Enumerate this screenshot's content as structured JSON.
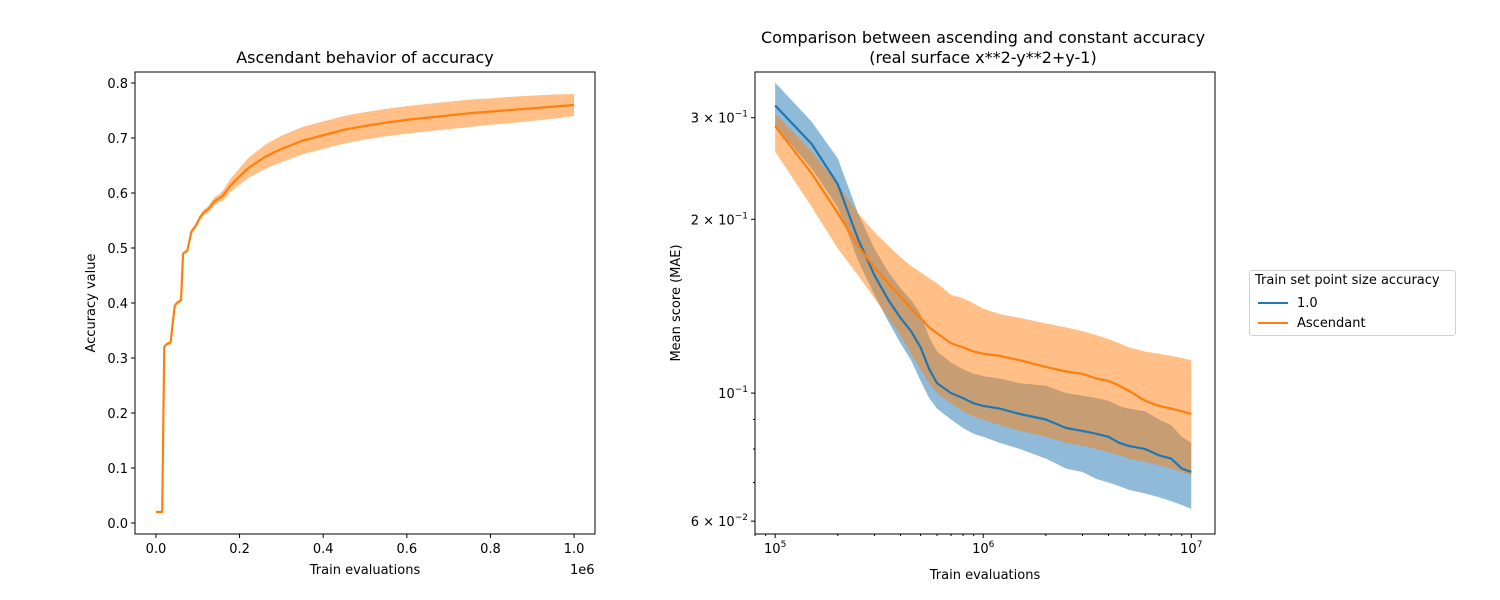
{
  "chart_data": [
    {
      "type": "line",
      "title": "Ascendant behavior of accuracy",
      "xlabel": "Train evaluations",
      "ylabel": "Accuracy value",
      "x_offset_label": "1e6",
      "xlim": [
        -0.05,
        1.05
      ],
      "ylim": [
        -0.02,
        0.82
      ],
      "x_ticks": [
        0.0,
        0.2,
        0.4,
        0.6,
        0.8,
        1.0
      ],
      "x_tick_labels": [
        "0.0",
        "0.2",
        "0.4",
        "0.6",
        "0.8",
        "1.0"
      ],
      "y_ticks": [
        0.0,
        0.1,
        0.2,
        0.3,
        0.4,
        0.5,
        0.6,
        0.7,
        0.8
      ],
      "y_tick_labels": [
        "0.0",
        "0.1",
        "0.2",
        "0.3",
        "0.4",
        "0.5",
        "0.6",
        "0.7",
        "0.8"
      ],
      "grid": false,
      "series": [
        {
          "color": "#ff7f0e",
          "band_color": "#ffbb88",
          "x": [
            0.0,
            0.015,
            0.02,
            0.025,
            0.035,
            0.045,
            0.05,
            0.06,
            0.065,
            0.075,
            0.085,
            0.095,
            0.105,
            0.115,
            0.125,
            0.14,
            0.15,
            0.16,
            0.17,
            0.18,
            0.2,
            0.22,
            0.24,
            0.26,
            0.28,
            0.3,
            0.35,
            0.4,
            0.45,
            0.5,
            0.55,
            0.6,
            0.65,
            0.7,
            0.75,
            0.8,
            0.85,
            0.9,
            0.95,
            1.0
          ],
          "y": [
            0.02,
            0.02,
            0.32,
            0.325,
            0.328,
            0.395,
            0.4,
            0.405,
            0.49,
            0.495,
            0.53,
            0.54,
            0.555,
            0.565,
            0.57,
            0.585,
            0.59,
            0.595,
            0.605,
            0.615,
            0.63,
            0.645,
            0.655,
            0.665,
            0.673,
            0.68,
            0.695,
            0.705,
            0.715,
            0.722,
            0.728,
            0.733,
            0.737,
            0.741,
            0.745,
            0.748,
            0.751,
            0.754,
            0.757,
            0.76
          ],
          "lower": [
            0.018,
            0.018,
            0.318,
            0.322,
            0.325,
            0.392,
            0.397,
            0.402,
            0.487,
            0.492,
            0.526,
            0.536,
            0.55,
            0.56,
            0.564,
            0.578,
            0.583,
            0.586,
            0.594,
            0.603,
            0.615,
            0.627,
            0.635,
            0.643,
            0.65,
            0.656,
            0.67,
            0.68,
            0.69,
            0.697,
            0.703,
            0.708,
            0.712,
            0.716,
            0.72,
            0.724,
            0.727,
            0.731,
            0.735,
            0.74
          ],
          "upper": [
            0.022,
            0.022,
            0.322,
            0.328,
            0.331,
            0.398,
            0.403,
            0.408,
            0.493,
            0.498,
            0.534,
            0.544,
            0.56,
            0.57,
            0.576,
            0.592,
            0.597,
            0.604,
            0.616,
            0.627,
            0.645,
            0.663,
            0.675,
            0.687,
            0.696,
            0.704,
            0.72,
            0.73,
            0.74,
            0.747,
            0.753,
            0.758,
            0.762,
            0.766,
            0.77,
            0.772,
            0.775,
            0.777,
            0.779,
            0.78
          ]
        }
      ]
    },
    {
      "type": "line",
      "title": "Comparison between ascending and constant accuracy",
      "subtitle": "(real surface x**2-y**2+y-1)",
      "xlabel": "Train evaluations",
      "ylabel": "Mean score (MAE)",
      "x_scale": "log",
      "y_scale": "log",
      "xlim": [
        80000,
        13000000
      ],
      "ylim": [
        0.057,
        0.36
      ],
      "x_ticks": [
        100000,
        1000000,
        10000000
      ],
      "x_tick_labels": [
        "10^5",
        "10^6",
        "10^7"
      ],
      "y_ticks": [
        0.06,
        0.1,
        0.2,
        0.3
      ],
      "y_tick_labels": [
        "6 × 10^-2",
        "10^-1",
        "2 × 10^-1",
        "3 × 10^-1"
      ],
      "grid": false,
      "legend": {
        "title": "Train set point size accuracy",
        "placement": "outside-right"
      },
      "series": [
        {
          "name": "1.0",
          "color": "#1f77b4",
          "band_color": "#8fbbd9",
          "x": [
            100000,
            150000,
            200000,
            250000,
            300000,
            350000,
            400000,
            450000,
            500000,
            550000,
            600000,
            700000,
            800000,
            900000,
            1000000,
            1200000,
            1500000,
            2000000,
            2500000,
            3000000,
            3500000,
            4000000,
            4500000,
            5000000,
            6000000,
            7000000,
            8000000,
            9000000,
            10000000
          ],
          "y": [
            0.315,
            0.27,
            0.23,
            0.185,
            0.16,
            0.145,
            0.135,
            0.128,
            0.12,
            0.11,
            0.104,
            0.1,
            0.098,
            0.096,
            0.095,
            0.094,
            0.092,
            0.09,
            0.087,
            0.086,
            0.085,
            0.084,
            0.082,
            0.081,
            0.08,
            0.078,
            0.077,
            0.074,
            0.073
          ],
          "lower": [
            0.29,
            0.245,
            0.21,
            0.17,
            0.148,
            0.133,
            0.122,
            0.114,
            0.105,
            0.098,
            0.094,
            0.09,
            0.087,
            0.085,
            0.084,
            0.082,
            0.08,
            0.077,
            0.074,
            0.073,
            0.071,
            0.07,
            0.069,
            0.068,
            0.067,
            0.066,
            0.065,
            0.064,
            0.063
          ],
          "upper": [
            0.345,
            0.295,
            0.255,
            0.205,
            0.178,
            0.162,
            0.152,
            0.145,
            0.137,
            0.125,
            0.118,
            0.113,
            0.11,
            0.108,
            0.107,
            0.106,
            0.104,
            0.103,
            0.1,
            0.099,
            0.098,
            0.097,
            0.095,
            0.094,
            0.093,
            0.09,
            0.088,
            0.084,
            0.082
          ]
        },
        {
          "name": "Ascendant",
          "color": "#ff7f0e",
          "band_color": "#ffbb88",
          "x": [
            100000,
            150000,
            200000,
            250000,
            300000,
            350000,
            400000,
            450000,
            500000,
            550000,
            600000,
            700000,
            800000,
            900000,
            1000000,
            1200000,
            1500000,
            2000000,
            2500000,
            3000000,
            3500000,
            4000000,
            4500000,
            5000000,
            6000000,
            7000000,
            8000000,
            9000000,
            10000000
          ],
          "y": [
            0.29,
            0.24,
            0.205,
            0.18,
            0.165,
            0.155,
            0.147,
            0.14,
            0.135,
            0.13,
            0.127,
            0.122,
            0.12,
            0.118,
            0.117,
            0.116,
            0.114,
            0.111,
            0.109,
            0.108,
            0.106,
            0.105,
            0.103,
            0.101,
            0.097,
            0.095,
            0.094,
            0.093,
            0.092
          ],
          "lower": [
            0.262,
            0.21,
            0.178,
            0.16,
            0.146,
            0.135,
            0.126,
            0.117,
            0.11,
            0.104,
            0.1,
            0.096,
            0.093,
            0.091,
            0.09,
            0.088,
            0.086,
            0.084,
            0.082,
            0.081,
            0.08,
            0.079,
            0.078,
            0.077,
            0.076,
            0.075,
            0.074,
            0.073,
            0.072
          ],
          "upper": [
            0.305,
            0.262,
            0.23,
            0.205,
            0.19,
            0.18,
            0.172,
            0.166,
            0.162,
            0.158,
            0.155,
            0.148,
            0.146,
            0.143,
            0.14,
            0.137,
            0.135,
            0.132,
            0.13,
            0.128,
            0.126,
            0.124,
            0.122,
            0.12,
            0.118,
            0.117,
            0.116,
            0.115,
            0.114
          ]
        }
      ]
    }
  ]
}
